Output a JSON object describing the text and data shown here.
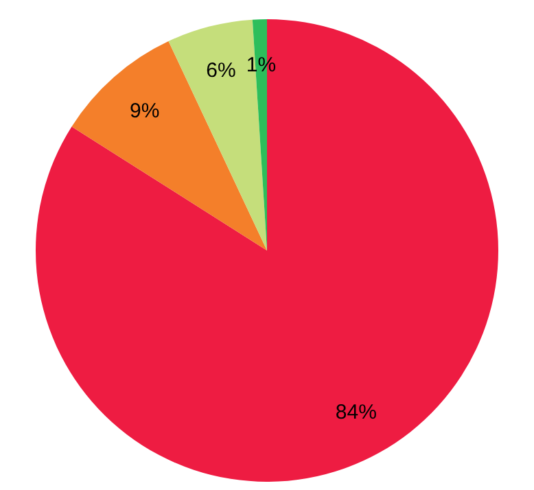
{
  "chart_data": {
    "type": "pie",
    "categories": [
      null,
      null,
      null,
      null
    ],
    "values": [
      84,
      9,
      6,
      1
    ],
    "colors": [
      "#ee1c42",
      "#f47f2a",
      "#c5de7b",
      "#2dbe5b"
    ],
    "value_labels": [
      "84%",
      "9%",
      "6%",
      "1%"
    ],
    "legend": false
  }
}
